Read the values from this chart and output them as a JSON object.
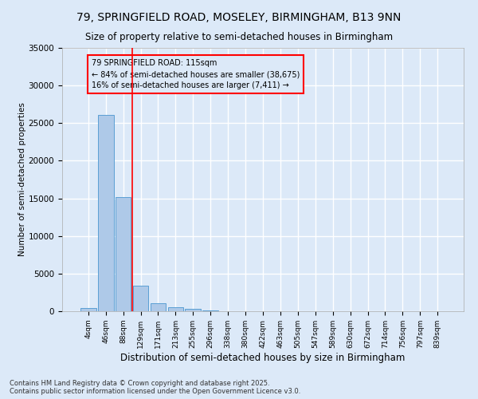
{
  "title_line1": "79, SPRINGFIELD ROAD, MOSELEY, BIRMINGHAM, B13 9NN",
  "title_line2": "Size of property relative to semi-detached houses in Birmingham",
  "xlabel": "Distribution of semi-detached houses by size in Birmingham",
  "ylabel": "Number of semi-detached properties",
  "footnote": "Contains HM Land Registry data © Crown copyright and database right 2025.\nContains public sector information licensed under the Open Government Licence v3.0.",
  "categories": [
    "4sqm",
    "46sqm",
    "88sqm",
    "129sqm",
    "171sqm",
    "213sqm",
    "255sqm",
    "296sqm",
    "338sqm",
    "380sqm",
    "422sqm",
    "463sqm",
    "505sqm",
    "547sqm",
    "589sqm",
    "630sqm",
    "672sqm",
    "714sqm",
    "756sqm",
    "797sqm",
    "839sqm"
  ],
  "values": [
    400,
    26100,
    15200,
    3400,
    1050,
    550,
    300,
    100,
    0,
    0,
    0,
    0,
    0,
    0,
    0,
    0,
    0,
    0,
    0,
    0,
    0
  ],
  "bar_color": "#aec9e8",
  "bar_edge_color": "#5a9fd4",
  "background_color": "#dce9f8",
  "grid_color": "#ffffff",
  "vline_color": "red",
  "vline_x_index": 2.5,
  "annotation_title": "79 SPRINGFIELD ROAD: 115sqm",
  "annotation_line1": "← 84% of semi-detached houses are smaller (38,675)",
  "annotation_line2": "16% of semi-detached houses are larger (7,411) →",
  "ylim": [
    0,
    35000
  ],
  "yticks": [
    0,
    5000,
    10000,
    15000,
    20000,
    25000,
    30000,
    35000
  ]
}
